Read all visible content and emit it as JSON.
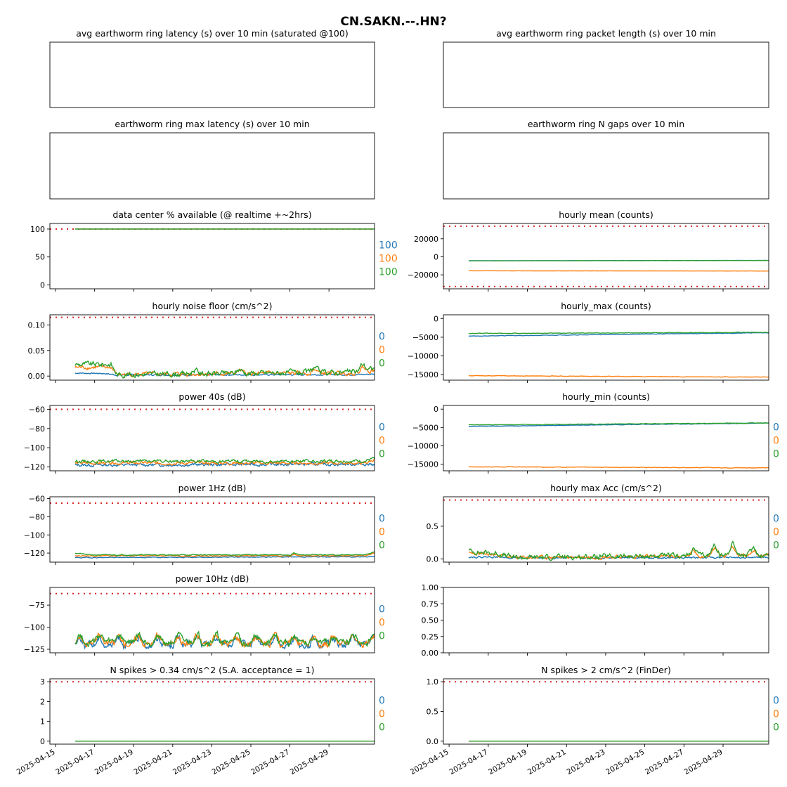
{
  "title": "CN.SAKN.--.HN?",
  "series_colors": [
    "#1f77b4",
    "#ff7f0e",
    "#2ca02c"
  ],
  "threshold_color": "#d62728",
  "x_axis": {
    "type": "date",
    "range": [
      "2025-04-14T17:00",
      "2025-05-01T08:00"
    ],
    "ticks": [
      "2025-04-15",
      "2025-04-17",
      "2025-04-19",
      "2025-04-21",
      "2025-04-23",
      "2025-04-25",
      "2025-04-27",
      "2025-04-29"
    ],
    "data_start": "2025-04-16T00:00",
    "data_end": "2025-05-01T08:00"
  },
  "chart_data": [
    {
      "id": "latency",
      "title": "avg earthworm ring latency (s)   over 10 min (saturated @100)",
      "type": "line",
      "empty": true,
      "series": []
    },
    {
      "id": "packet",
      "title": "avg earthworm ring packet length (s)   over 10 min",
      "type": "line",
      "empty": true,
      "series": []
    },
    {
      "id": "maxlat",
      "title": "earthworm ring max latency (s)   over 10 min",
      "type": "line",
      "empty": true,
      "series": []
    },
    {
      "id": "gaps",
      "title": "earthworm ring N gaps   over 10 min",
      "type": "line",
      "empty": true,
      "series": []
    },
    {
      "id": "avail",
      "title": "data center % available (@ realtime +~2hrs)",
      "type": "line",
      "ylim": [
        -7,
        110
      ],
      "yticks": [
        {
          "v": 100,
          "l": "100"
        },
        {
          "v": 50,
          "l": "50"
        },
        {
          "v": 0,
          "l": "0"
        }
      ],
      "thresholds": [
        100
      ],
      "threshold_start": "2025-04-14T17:00",
      "side_values": [
        "100",
        "100",
        "100"
      ],
      "series": [
        {
          "base": [
            [
              0,
              100
            ],
            [
              1,
              100
            ]
          ],
          "amp": 0,
          "seed": 1
        },
        {
          "base": [
            [
              0,
              100
            ],
            [
              1,
              100
            ]
          ],
          "amp": 0,
          "seed": 2
        },
        {
          "base": [
            [
              0,
              100
            ],
            [
              1,
              100
            ]
          ],
          "amp": 0,
          "seed": 3
        }
      ]
    },
    {
      "id": "mean",
      "title": "hourly mean (counts)",
      "type": "line",
      "ylim": [
        -35500,
        37000
      ],
      "yticks": [
        {
          "v": 20000,
          "l": "20000"
        },
        {
          "v": 0,
          "l": "0"
        },
        {
          "v": -20000,
          "l": "−20000"
        }
      ],
      "thresholds": [
        34000,
        -33000
      ],
      "side_values": [],
      "series": [
        {
          "base": [
            [
              0,
              -4300
            ],
            [
              1,
              -4000
            ]
          ],
          "amp": 60,
          "seed": 4
        },
        {
          "base": [
            [
              0,
              -15500
            ],
            [
              1,
              -15800
            ]
          ],
          "amp": 60,
          "seed": 5
        },
        {
          "base": [
            [
              0,
              -4500
            ],
            [
              1,
              -4100
            ]
          ],
          "amp": 60,
          "seed": 6
        }
      ]
    },
    {
      "id": "noise",
      "title": "hourly noise floor (cm/s^2)",
      "type": "line",
      "ylim": [
        -0.008,
        0.12
      ],
      "yticks": [
        {
          "v": 0.1,
          "l": "0.10"
        },
        {
          "v": 0.05,
          "l": "0.05"
        },
        {
          "v": 0.0,
          "l": "0.00"
        }
      ],
      "thresholds": [
        0.115
      ],
      "side_values": [
        "0",
        "0",
        "0"
      ],
      "series": [
        {
          "base": [
            [
              0,
              0.006
            ],
            [
              0.1,
              0.005
            ],
            [
              0.14,
              0.002
            ],
            [
              0.95,
              0.003
            ],
            [
              1,
              0.004
            ]
          ],
          "amp": 0.001,
          "seed": 7
        },
        {
          "base": [
            [
              0,
              0.017
            ],
            [
              0.12,
              0.017
            ],
            [
              0.14,
              0.003
            ],
            [
              0.95,
              0.006
            ],
            [
              1,
              0.012
            ]
          ],
          "amp": 0.003,
          "seed": 8,
          "bumps": [
            [
              0.55,
              0.006
            ],
            [
              0.8,
              0.008
            ],
            [
              0.96,
              0.01
            ]
          ]
        },
        {
          "base": [
            [
              0,
              0.023
            ],
            [
              0.12,
              0.023
            ],
            [
              0.14,
              0.003
            ],
            [
              0.95,
              0.008
            ],
            [
              1,
              0.016
            ]
          ],
          "amp": 0.004,
          "seed": 9,
          "bumps": [
            [
              0.4,
              0.008
            ],
            [
              0.55,
              0.008
            ],
            [
              0.8,
              0.01
            ],
            [
              0.96,
              0.014
            ]
          ]
        }
      ]
    },
    {
      "id": "hmax",
      "title": "hourly_max (counts)",
      "type": "line",
      "ylim": [
        -16500,
        1000
      ],
      "yticks": [
        {
          "v": 0,
          "l": "0"
        },
        {
          "v": -5000,
          "l": "−5000"
        },
        {
          "v": -10000,
          "l": "−10000"
        },
        {
          "v": -15000,
          "l": "−15000"
        }
      ],
      "thresholds": [],
      "side_values": [],
      "series": [
        {
          "base": [
            [
              0,
              -4700
            ],
            [
              1,
              -3800
            ]
          ],
          "amp": 50,
          "seed": 10
        },
        {
          "base": [
            [
              0,
              -15300
            ],
            [
              1,
              -15700
            ]
          ],
          "amp": 50,
          "seed": 11
        },
        {
          "base": [
            [
              0,
              -4000
            ],
            [
              1,
              -3700
            ]
          ],
          "amp": 60,
          "seed": 12
        }
      ]
    },
    {
      "id": "p40",
      "title": "power 40s (dB)",
      "type": "line",
      "ylim": [
        -124,
        -56
      ],
      "yticks": [
        {
          "v": -60,
          "l": "−60"
        },
        {
          "v": -80,
          "l": "−80"
        },
        {
          "v": -100,
          "l": "−100"
        },
        {
          "v": -120,
          "l": "−120"
        }
      ],
      "thresholds": [
        -60
      ],
      "side_values": [
        "0",
        "0",
        "0"
      ],
      "series": [
        {
          "base": [
            [
              0,
              -118
            ],
            [
              1,
              -117
            ]
          ],
          "amp": 1.2,
          "seed": 13
        },
        {
          "base": [
            [
              0,
              -116
            ],
            [
              0.97,
              -116
            ],
            [
              1,
              -112
            ]
          ],
          "amp": 1.2,
          "seed": 14
        },
        {
          "base": [
            [
              0,
              -114
            ],
            [
              0.97,
              -114
            ],
            [
              1,
              -111
            ]
          ],
          "amp": 1.2,
          "seed": 15
        }
      ]
    },
    {
      "id": "hmin",
      "title": "hourly_min (counts)",
      "type": "line",
      "ylim": [
        -16800,
        1000
      ],
      "yticks": [
        {
          "v": 0,
          "l": "0"
        },
        {
          "v": -5000,
          "l": "−5000"
        },
        {
          "v": -10000,
          "l": "−10000"
        },
        {
          "v": -15000,
          "l": "−15000"
        }
      ],
      "thresholds": [],
      "side_values": [
        "0",
        "0",
        "0"
      ],
      "series": [
        {
          "base": [
            [
              0,
              -4700
            ],
            [
              1,
              -3800
            ]
          ],
          "amp": 50,
          "seed": 16
        },
        {
          "base": [
            [
              0,
              -15700
            ],
            [
              1,
              -16000
            ]
          ],
          "amp": 60,
          "seed": 17
        },
        {
          "base": [
            [
              0,
              -4300
            ],
            [
              1,
              -3800
            ]
          ],
          "amp": 60,
          "seed": 18
        }
      ]
    },
    {
      "id": "p1",
      "title": "power 1Hz (dB)",
      "type": "line",
      "ylim": [
        -130,
        -58
      ],
      "yticks": [
        {
          "v": -60,
          "l": "−60"
        },
        {
          "v": -80,
          "l": "−80"
        },
        {
          "v": -100,
          "l": "−100"
        },
        {
          "v": -120,
          "l": "−120"
        }
      ],
      "thresholds": [
        -65
      ],
      "side_values": [
        "0",
        "0",
        "0"
      ],
      "series": [
        {
          "base": [
            [
              0,
              -125
            ],
            [
              1,
              -124
            ]
          ],
          "amp": 0.3,
          "seed": 19
        },
        {
          "base": [
            [
              0,
              -123
            ],
            [
              0.72,
              -123
            ],
            [
              0.73,
              -121
            ],
            [
              0.75,
              -123
            ],
            [
              0.97,
              -123
            ],
            [
              1,
              -120
            ]
          ],
          "amp": 0.4,
          "seed": 20
        },
        {
          "base": [
            [
              0,
              -120
            ],
            [
              0.05,
              -122
            ],
            [
              0.72,
              -122
            ],
            [
              0.73,
              -120
            ],
            [
              0.75,
              -122
            ],
            [
              0.97,
              -122
            ],
            [
              1,
              -119
            ]
          ],
          "amp": 0.4,
          "seed": 21
        }
      ]
    },
    {
      "id": "hacc",
      "title": "hourly max Acc (cm/s^2)",
      "type": "line",
      "ylim": [
        -0.05,
        0.95
      ],
      "yticks": [
        {
          "v": 0.5,
          "l": "0.5"
        },
        {
          "v": 0.0,
          "l": "0.0"
        }
      ],
      "thresholds": [
        0.9
      ],
      "side_values": [
        "0",
        "0",
        "0"
      ],
      "series": [
        {
          "base": [
            [
              0,
              0.03
            ],
            [
              0.1,
              0.03
            ],
            [
              0.15,
              0.015
            ],
            [
              1,
              0.02
            ]
          ],
          "amp": 0.01,
          "seed": 22
        },
        {
          "base": [
            [
              0,
              0.08
            ],
            [
              0.1,
              0.06
            ],
            [
              0.15,
              0.02
            ],
            [
              1,
              0.05
            ]
          ],
          "amp": 0.02,
          "seed": 23,
          "bumps": [
            [
              0.75,
              0.08
            ],
            [
              0.82,
              0.12
            ],
            [
              0.88,
              0.15
            ],
            [
              0.95,
              0.08
            ]
          ]
        },
        {
          "base": [
            [
              0,
              0.12
            ],
            [
              0.1,
              0.08
            ],
            [
              0.15,
              0.02
            ],
            [
              1,
              0.06
            ]
          ],
          "amp": 0.03,
          "seed": 24,
          "bumps": [
            [
              0.75,
              0.1
            ],
            [
              0.82,
              0.16
            ],
            [
              0.88,
              0.2
            ],
            [
              0.95,
              0.1
            ]
          ]
        }
      ]
    },
    {
      "id": "p10",
      "title": "power 10Hz (dB)",
      "type": "line",
      "ylim": [
        -129,
        -55
      ],
      "yticks": [
        {
          "v": -75,
          "l": "−75"
        },
        {
          "v": -100,
          "l": "−100"
        },
        {
          "v": -125,
          "l": "−125"
        }
      ],
      "thresholds": [
        -62
      ],
      "side_values": [
        "0",
        "0",
        "0"
      ],
      "series": [
        {
          "base": [
            [
              0,
              -120
            ],
            [
              1,
              -120
            ]
          ],
          "amp": 3,
          "seed": 25,
          "wave": true
        },
        {
          "base": [
            [
              0,
              -118
            ],
            [
              1,
              -119
            ]
          ],
          "amp": 3,
          "seed": 26,
          "wave": true
        },
        {
          "base": [
            [
              0,
              -117
            ],
            [
              1,
              -118
            ]
          ],
          "amp": 3,
          "seed": 27,
          "wave": true
        }
      ]
    },
    {
      "id": "blank",
      "title": "",
      "type": "line",
      "empty": true,
      "ylim": [
        0,
        1
      ],
      "yticks": [
        {
          "v": 1.0,
          "l": "1.00"
        },
        {
          "v": 0.75,
          "l": "0.75"
        },
        {
          "v": 0.5,
          "l": "0.50"
        },
        {
          "v": 0.25,
          "l": "0.25"
        },
        {
          "v": 0.0,
          "l": "0.00"
        }
      ],
      "thresholds": [],
      "series": []
    },
    {
      "id": "spk1",
      "title": "N spikes > 0.34 cm/s^2 (S.A. acceptance = 1)",
      "type": "line",
      "ylim": [
        -0.15,
        3.15
      ],
      "yticks": [
        {
          "v": 3,
          "l": "3"
        },
        {
          "v": 2,
          "l": "2"
        },
        {
          "v": 1,
          "l": "1"
        },
        {
          "v": 0,
          "l": "0"
        }
      ],
      "thresholds": [
        3
      ],
      "side_values": [
        "0",
        "0",
        "0"
      ],
      "series": [
        {
          "base": [
            [
              0,
              0
            ],
            [
              1,
              0
            ]
          ],
          "amp": 0,
          "seed": 28
        },
        {
          "base": [
            [
              0,
              0
            ],
            [
              1,
              0
            ]
          ],
          "amp": 0,
          "seed": 29
        },
        {
          "base": [
            [
              0,
              0
            ],
            [
              1,
              0
            ]
          ],
          "amp": 0,
          "seed": 30
        }
      ]
    },
    {
      "id": "spk2",
      "title": "N spikes > 2 cm/s^2 (FinDer)",
      "type": "line",
      "ylim": [
        -0.05,
        1.05
      ],
      "yticks": [
        {
          "v": 1.0,
          "l": "1.0"
        },
        {
          "v": 0.5,
          "l": "0.5"
        },
        {
          "v": 0.0,
          "l": "0.0"
        }
      ],
      "thresholds": [
        1
      ],
      "side_values": [
        "0",
        "0",
        "0"
      ],
      "series": [
        {
          "base": [
            [
              0,
              0
            ],
            [
              1,
              0
            ]
          ],
          "amp": 0,
          "seed": 31
        },
        {
          "base": [
            [
              0,
              0
            ],
            [
              1,
              0
            ]
          ],
          "amp": 0,
          "seed": 32
        },
        {
          "base": [
            [
              0,
              0
            ],
            [
              1,
              0
            ]
          ],
          "amp": 0,
          "seed": 33
        }
      ]
    }
  ]
}
